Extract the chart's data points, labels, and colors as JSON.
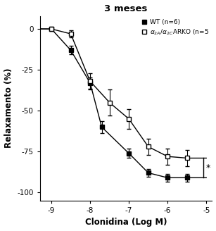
{
  "title": "3 meses",
  "xlabel": "Clonidina (Log M)",
  "ylabel": "Relaxamento (%)",
  "wt_label": "WT (n=6)",
  "wt_x": [
    -9,
    -8.5,
    -8,
    -7.7,
    -7,
    -6.5,
    -6,
    -5.5
  ],
  "wt_y": [
    0,
    -13,
    -33,
    -60,
    -76,
    -88,
    -91,
    -91
  ],
  "wt_err": [
    1.0,
    2.5,
    3.5,
    3.5,
    3.0,
    2.5,
    2.5,
    2.5
  ],
  "arko_x": [
    -9,
    -8.5,
    -8,
    -7.5,
    -7,
    -6.5,
    -6,
    -5.5
  ],
  "arko_y": [
    0,
    -3,
    -32,
    -45,
    -55,
    -72,
    -78,
    -79
  ],
  "arko_err": [
    1.0,
    2.0,
    5.0,
    8.0,
    6.0,
    5.0,
    5.0,
    5.0
  ],
  "xlim": [
    -9.3,
    -4.85
  ],
  "ylim": [
    -105,
    8
  ],
  "yticks": [
    0,
    -25,
    -50,
    -75,
    -100
  ],
  "xticks": [
    -9,
    -8,
    -7,
    -6,
    -5
  ],
  "background_color": "#ffffff",
  "wt_color": "#000000",
  "arko_color": "#000000",
  "sig_x": -5.08,
  "sig_y1": -79,
  "sig_y2": -91,
  "figwidth": 3.07,
  "figheight": 3.28,
  "dpi": 100
}
